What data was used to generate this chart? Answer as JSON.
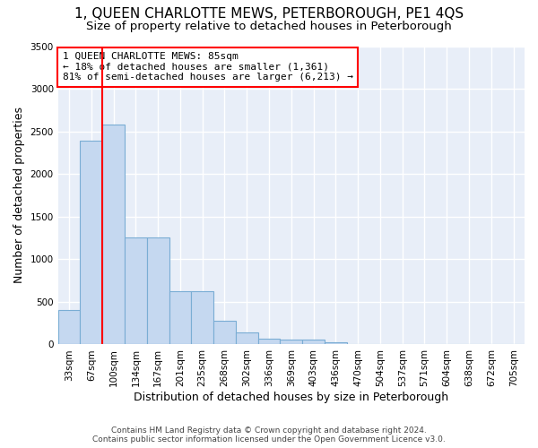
{
  "title_line1": "1, QUEEN CHARLOTTE MEWS, PETERBOROUGH, PE1 4QS",
  "title_line2": "Size of property relative to detached houses in Peterborough",
  "xlabel": "Distribution of detached houses by size in Peterborough",
  "ylabel": "Number of detached properties",
  "footer_line1": "Contains HM Land Registry data © Crown copyright and database right 2024.",
  "footer_line2": "Contains public sector information licensed under the Open Government Licence v3.0.",
  "categories": [
    "33sqm",
    "67sqm",
    "100sqm",
    "134sqm",
    "167sqm",
    "201sqm",
    "235sqm",
    "268sqm",
    "302sqm",
    "336sqm",
    "369sqm",
    "403sqm",
    "436sqm",
    "470sqm",
    "504sqm",
    "537sqm",
    "571sqm",
    "604sqm",
    "638sqm",
    "672sqm",
    "705sqm"
  ],
  "values": [
    400,
    2390,
    2580,
    1260,
    1260,
    630,
    630,
    280,
    145,
    65,
    55,
    55,
    30,
    0,
    0,
    0,
    0,
    0,
    0,
    0,
    0
  ],
  "bar_color": "#c5d8f0",
  "bar_edge_color": "#7aadd4",
  "vline_x": 1.5,
  "vline_color": "red",
  "annotation_text": "1 QUEEN CHARLOTTE MEWS: 85sqm\n← 18% of detached houses are smaller (1,361)\n81% of semi-detached houses are larger (6,213) →",
  "annotation_box_color": "white",
  "annotation_box_edge_color": "red",
  "ylim": [
    0,
    3500
  ],
  "yticks": [
    0,
    500,
    1000,
    1500,
    2000,
    2500,
    3000,
    3500
  ],
  "background_color": "#e8eef8",
  "grid_color": "white",
  "title_fontsize": 11,
  "subtitle_fontsize": 9.5,
  "axis_label_fontsize": 9,
  "ylabel_fontsize": 9,
  "tick_fontsize": 7.5,
  "footer_fontsize": 6.5
}
